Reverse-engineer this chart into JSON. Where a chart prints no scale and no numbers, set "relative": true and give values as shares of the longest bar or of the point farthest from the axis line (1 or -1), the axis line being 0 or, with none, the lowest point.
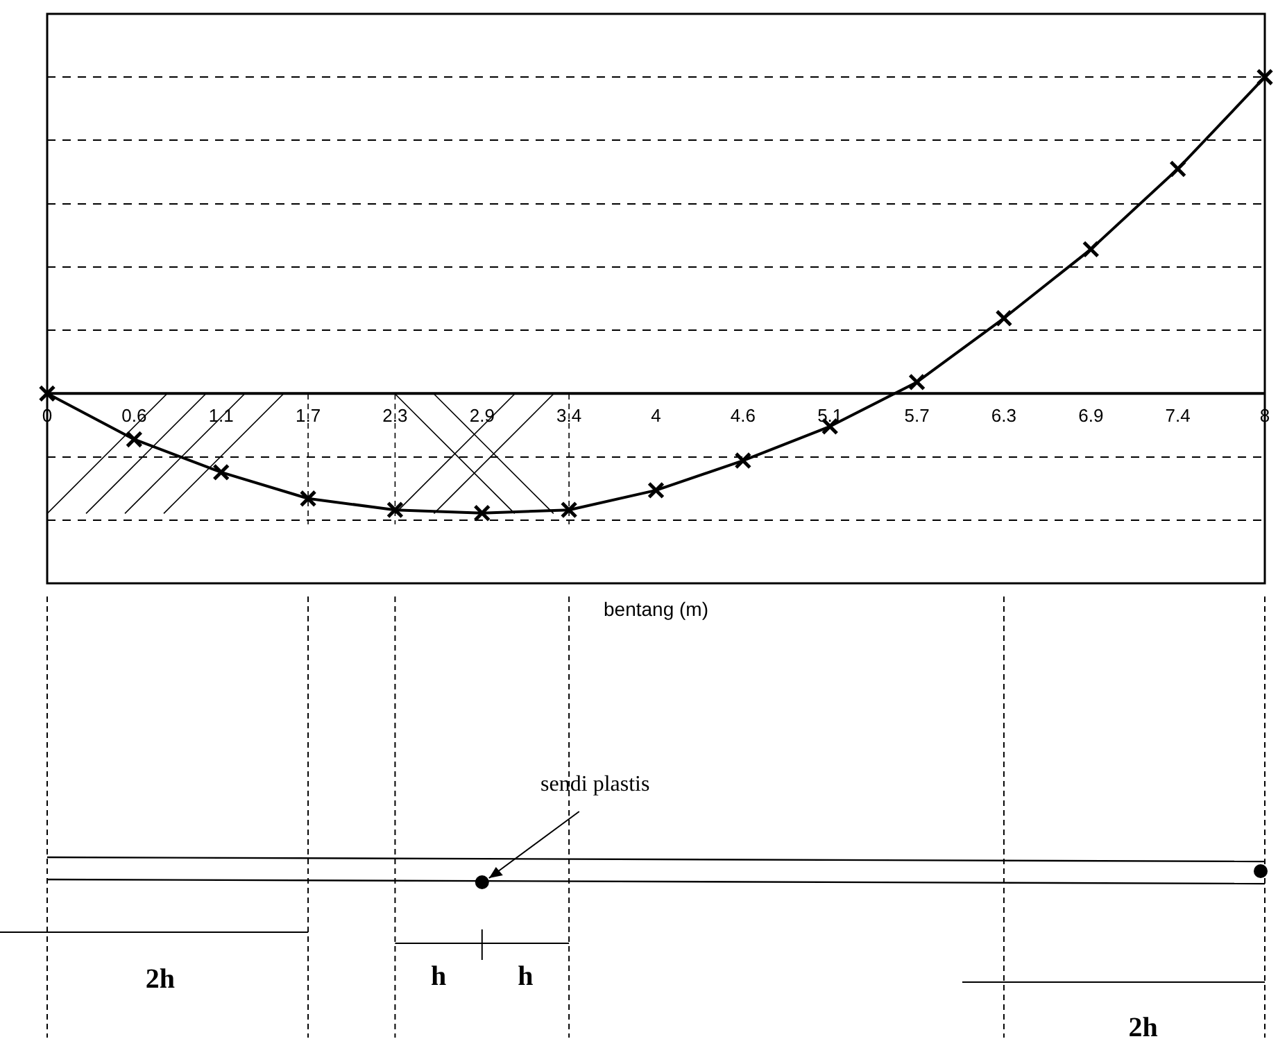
{
  "chart_data": {
    "type": "line",
    "xlabel": "bentang (m)",
    "categories": [
      "0",
      "0.6",
      "1.1",
      "1.7",
      "2.3",
      "2.9",
      "3.4",
      "4",
      "4.6",
      "5.1",
      "5.7",
      "6.3",
      "6.9",
      "7.4",
      "8"
    ],
    "relative": true,
    "series": [
      {
        "color": "#000000",
        "values": [
          0,
          -0.145,
          -0.249,
          -0.332,
          -0.368,
          -0.378,
          -0.368,
          -0.306,
          -0.212,
          -0.104,
          0.036,
          0.238,
          0.456,
          0.71,
          1
        ]
      }
    ],
    "marker": "cross",
    "line_style": "solid",
    "grid": "y",
    "legend": false,
    "annotations": [
      "sendi plastis",
      "2h",
      "h",
      "h",
      "2h"
    ]
  }
}
